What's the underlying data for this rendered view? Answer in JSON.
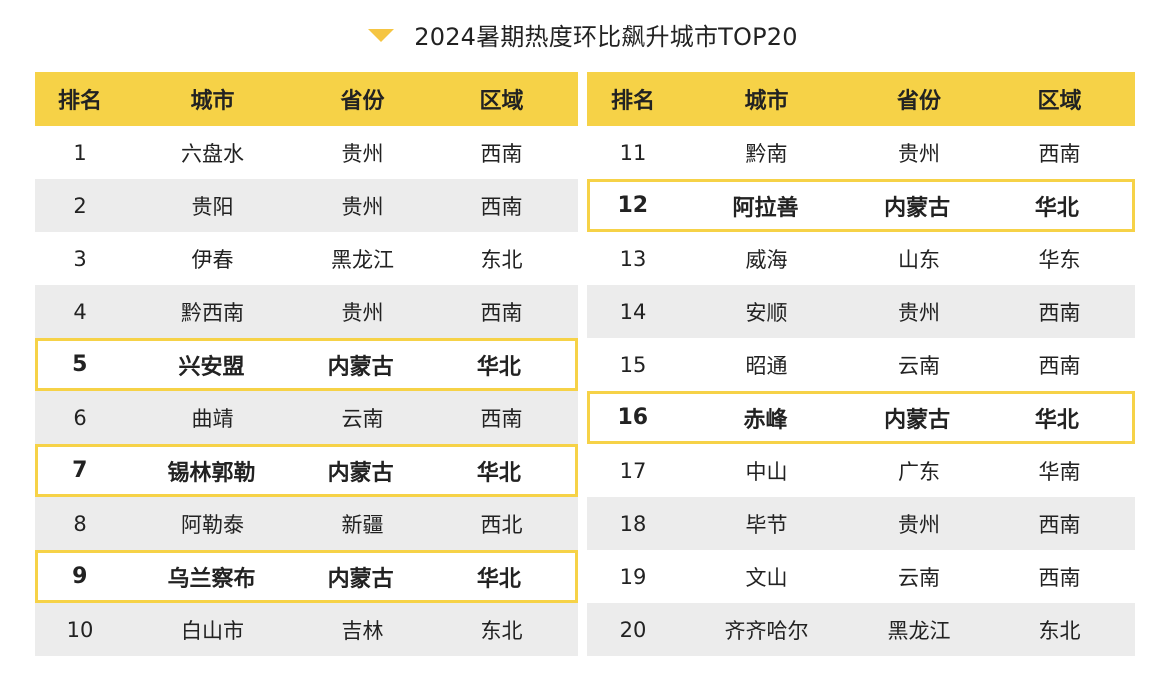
{
  "title": "2024暑期热度环比飙升城市TOP20",
  "accent_color": "#f6d247",
  "headers": [
    "排名",
    "城市",
    "省份",
    "区域"
  ],
  "left_rows": [
    {
      "rank": "1",
      "city": "六盘水",
      "province": "贵州",
      "region": "西南",
      "highlight": false
    },
    {
      "rank": "2",
      "city": "贵阳",
      "province": "贵州",
      "region": "西南",
      "highlight": false
    },
    {
      "rank": "3",
      "city": "伊春",
      "province": "黑龙江",
      "region": "东北",
      "highlight": false
    },
    {
      "rank": "4",
      "city": "黔西南",
      "province": "贵州",
      "region": "西南",
      "highlight": false
    },
    {
      "rank": "5",
      "city": "兴安盟",
      "province": "内蒙古",
      "region": "华北",
      "highlight": true
    },
    {
      "rank": "6",
      "city": "曲靖",
      "province": "云南",
      "region": "西南",
      "highlight": false
    },
    {
      "rank": "7",
      "city": "锡林郭勒",
      "province": "内蒙古",
      "region": "华北",
      "highlight": true
    },
    {
      "rank": "8",
      "city": "阿勒泰",
      "province": "新疆",
      "region": "西北",
      "highlight": false
    },
    {
      "rank": "9",
      "city": "乌兰察布",
      "province": "内蒙古",
      "region": "华北",
      "highlight": true
    },
    {
      "rank": "10",
      "city": "白山市",
      "province": "吉林",
      "region": "东北",
      "highlight": false
    }
  ],
  "right_rows": [
    {
      "rank": "11",
      "city": "黔南",
      "province": "贵州",
      "region": "西南",
      "highlight": false
    },
    {
      "rank": "12",
      "city": "阿拉善",
      "province": "内蒙古",
      "region": "华北",
      "highlight": true
    },
    {
      "rank": "13",
      "city": "威海",
      "province": "山东",
      "region": "华东",
      "highlight": false
    },
    {
      "rank": "14",
      "city": "安顺",
      "province": "贵州",
      "region": "西南",
      "highlight": false
    },
    {
      "rank": "15",
      "city": "昭通",
      "province": "云南",
      "region": "西南",
      "highlight": false
    },
    {
      "rank": "16",
      "city": "赤峰",
      "province": "内蒙古",
      "region": "华北",
      "highlight": true
    },
    {
      "rank": "17",
      "city": "中山",
      "province": "广东",
      "region": "华南",
      "highlight": false
    },
    {
      "rank": "18",
      "city": "毕节",
      "province": "贵州",
      "region": "西南",
      "highlight": false
    },
    {
      "rank": "19",
      "city": "文山",
      "province": "云南",
      "region": "西南",
      "highlight": false
    },
    {
      "rank": "20",
      "city": "齐齐哈尔",
      "province": "黑龙江",
      "region": "东北",
      "highlight": false
    }
  ]
}
